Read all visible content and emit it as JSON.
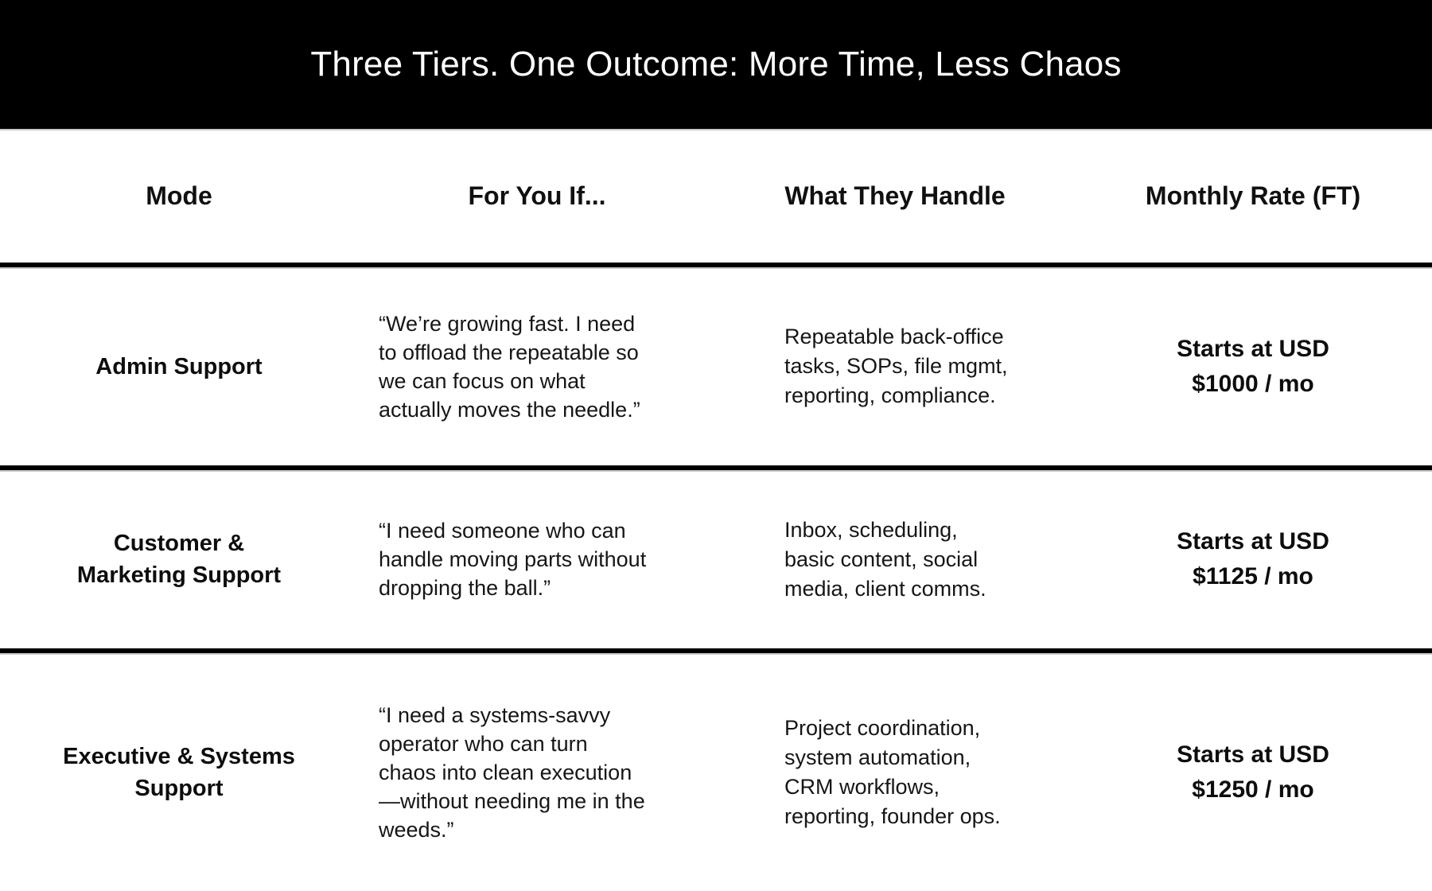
{
  "banner": {
    "title": "Three Tiers. One Outcome: More Time, Less Chaos"
  },
  "table": {
    "columns": [
      "Mode",
      "For You If...",
      "What They Handle",
      "Monthly Rate (FT)"
    ],
    "rows": [
      {
        "mode": "Admin Support",
        "for_you_if": "“We’re growing fast. I need\nto offload the repeatable so\nwe can focus on what\nactually moves the needle.”",
        "what_they_handle": "Repeatable back-office\ntasks, SOPs, file mgmt,\nreporting, compliance.",
        "monthly_rate": "Starts at USD\n$1000 / mo"
      },
      {
        "mode": "Customer &\nMarketing Support",
        "for_you_if": "“I need someone who can\nhandle moving parts without\ndropping the ball.”",
        "what_they_handle": "Inbox, scheduling,\nbasic content, social\nmedia, client comms.",
        "monthly_rate": "Starts at USD\n$1125 / mo"
      },
      {
        "mode": "Executive & Systems\nSupport",
        "for_you_if": "“I need a systems-savvy\noperator who can turn\nchaos into clean execution\n—without needing me in the\nweeds.”",
        "what_they_handle": "Project coordination,\nsystem automation,\nCRM workflows,\nreporting, founder ops.",
        "monthly_rate": "Starts at USD\n$1250 / mo"
      }
    ]
  }
}
